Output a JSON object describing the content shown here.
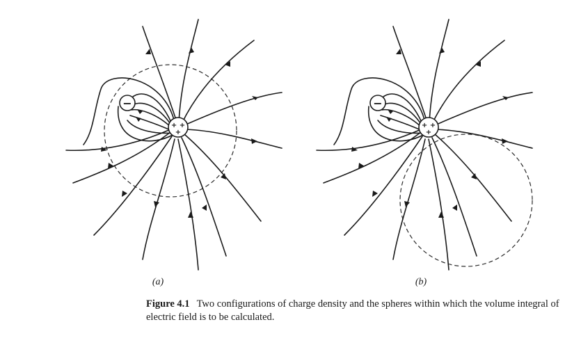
{
  "figure": {
    "panels": [
      {
        "id": "a",
        "label": "(a)",
        "positive_sign": "+ + +",
        "negative_sign": "−",
        "sphere_region": "centered on positive charge"
      },
      {
        "id": "b",
        "label": "(b)",
        "positive_sign": "+ + +",
        "negative_sign": "−",
        "sphere_region": "below positive charge, excluding charges"
      }
    ],
    "caption": {
      "figure_number": "Figure 4.1",
      "text": "Two configurations of charge density and the spheres within which the volume integral of electric field is to be calculated."
    }
  }
}
